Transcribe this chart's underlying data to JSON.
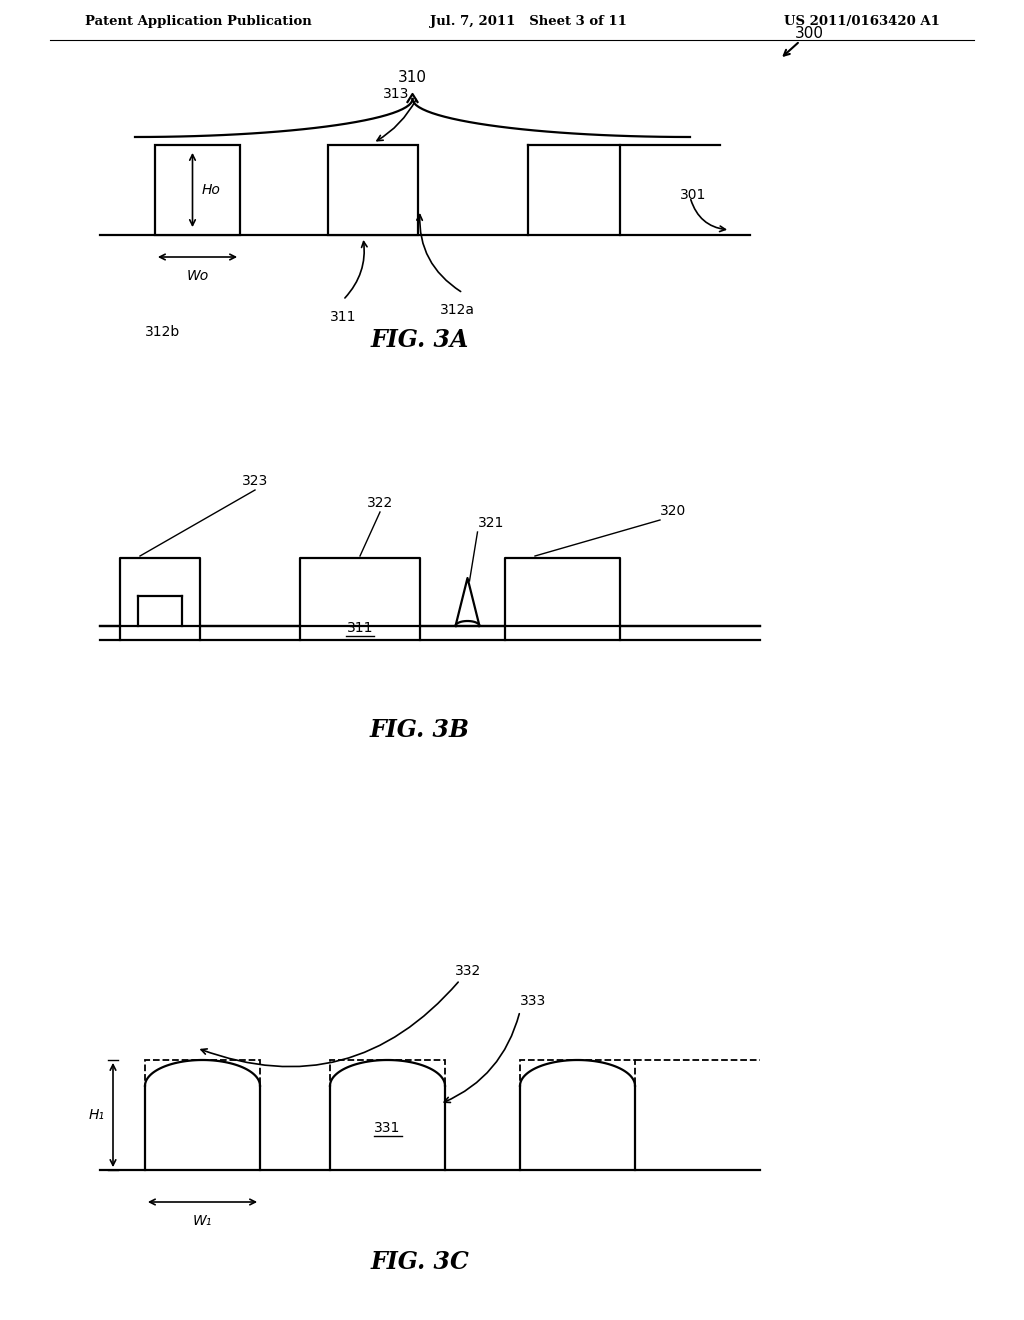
{
  "bg_color": "#ffffff",
  "line_color": "#000000",
  "header_left": "Patent Application Publication",
  "header_center": "Jul. 7, 2011   Sheet 3 of 11",
  "header_right": "US 2011/0163420 A1",
  "fig3a_label": "FIG. 3A",
  "fig3b_label": "FIG. 3B",
  "fig3c_label": "FIG. 3C",
  "lw": 1.6
}
